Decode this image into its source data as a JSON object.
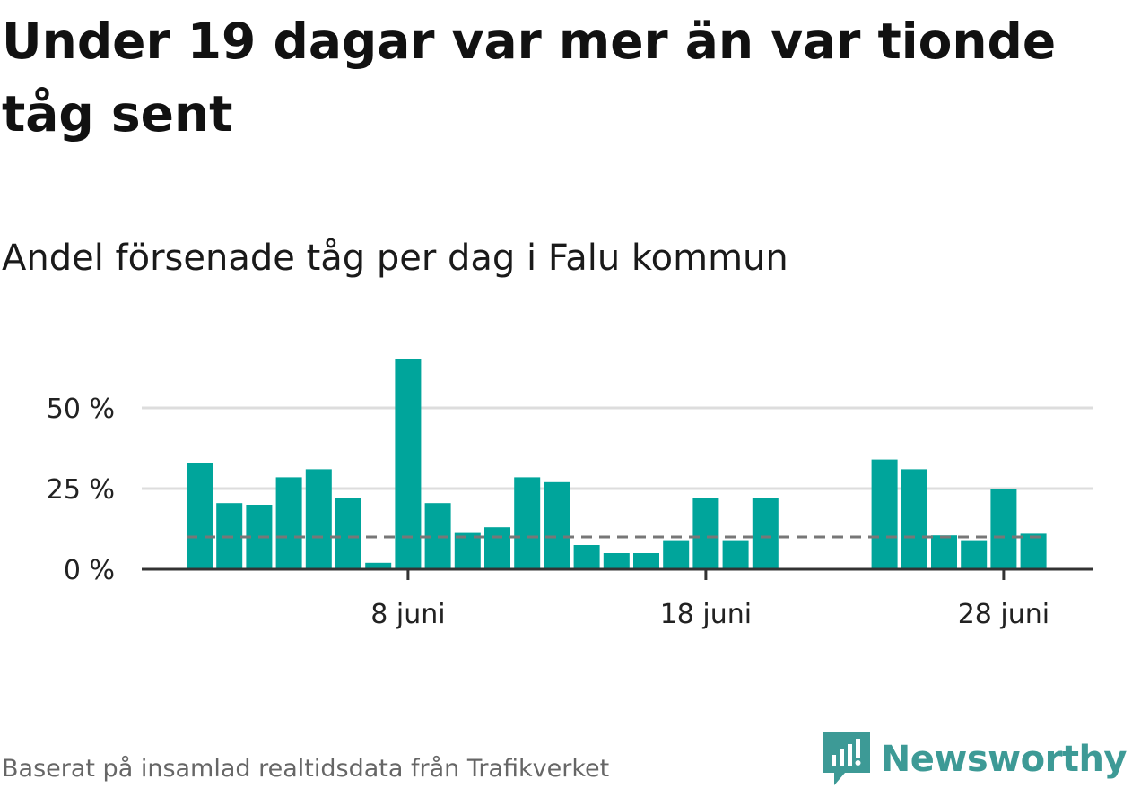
{
  "title": "Under 19 dagar var mer än var tionde tåg sent",
  "subtitle": "Andel försenade tåg per dag i Falu kommun",
  "source": "Baserat på insamlad realtidsdata från Trafikverket",
  "brand": {
    "name": "Newsworthy",
    "icon": "newsworthy-logo-icon",
    "color": "#3d9a96"
  },
  "colors": {
    "bar": "#00a59b",
    "grid": "#dddddd",
    "axis": "#333333",
    "reference": "#777777"
  },
  "chart_data": {
    "type": "bar",
    "x_start_day": 1,
    "x_end_day": 30,
    "month": "juni",
    "values": [
      33,
      20.5,
      20,
      28.5,
      31,
      22,
      2,
      65,
      20.5,
      11.5,
      13,
      28.5,
      27,
      7.5,
      5,
      5,
      9,
      22,
      9,
      22,
      null,
      null,
      null,
      34,
      31,
      10.5,
      9,
      25,
      11
    ],
    "reference_line": 10,
    "reference_style": "dashed",
    "ylim": [
      0,
      68
    ],
    "yticks": [
      {
        "value": 0,
        "label": "0 %"
      },
      {
        "value": 25,
        "label": "25 %"
      },
      {
        "value": 50,
        "label": "50 %"
      }
    ],
    "xticks": [
      {
        "day": 8,
        "label": "8 juni"
      },
      {
        "day": 18,
        "label": "18 juni"
      },
      {
        "day": 28,
        "label": "28 juni"
      }
    ],
    "grid": true,
    "xlabel": "",
    "ylabel": ""
  }
}
